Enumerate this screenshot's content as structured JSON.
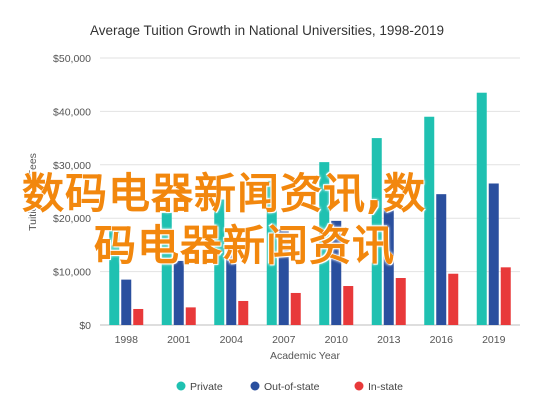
{
  "chart_data": {
    "type": "bar",
    "title": "Average Tuition Growth in National Universities, 1998-2019",
    "xlabel": "Academic Year",
    "ylabel": "Tuition and Fees",
    "categories": [
      "1998",
      "2001",
      "2004",
      "2007",
      "2010",
      "2013",
      "2016",
      "2019"
    ],
    "yticks": [
      "$0",
      "$10,000",
      "$20,000",
      "$30,000",
      "$40,000",
      "$50,000"
    ],
    "ylim": [
      0,
      50000
    ],
    "grid": true,
    "legend_position": "bottom",
    "series": [
      {
        "name": "Private",
        "color": "#1fc1b1",
        "values": [
          18000,
          21000,
          23500,
          27000,
          30500,
          35000,
          39000,
          43500
        ]
      },
      {
        "name": "Out-of-state",
        "color": "#2a4f9e",
        "values": [
          8500,
          12000,
          14000,
          18000,
          19500,
          22000,
          24500,
          26500
        ]
      },
      {
        "name": "In-state",
        "color": "#e8393a",
        "values": [
          3000,
          3300,
          4500,
          6000,
          7300,
          8800,
          9600,
          10800
        ]
      }
    ]
  },
  "watermark": {
    "line1": "数码电器新闻资讯,数",
    "line2": "码电器新闻资讯"
  }
}
